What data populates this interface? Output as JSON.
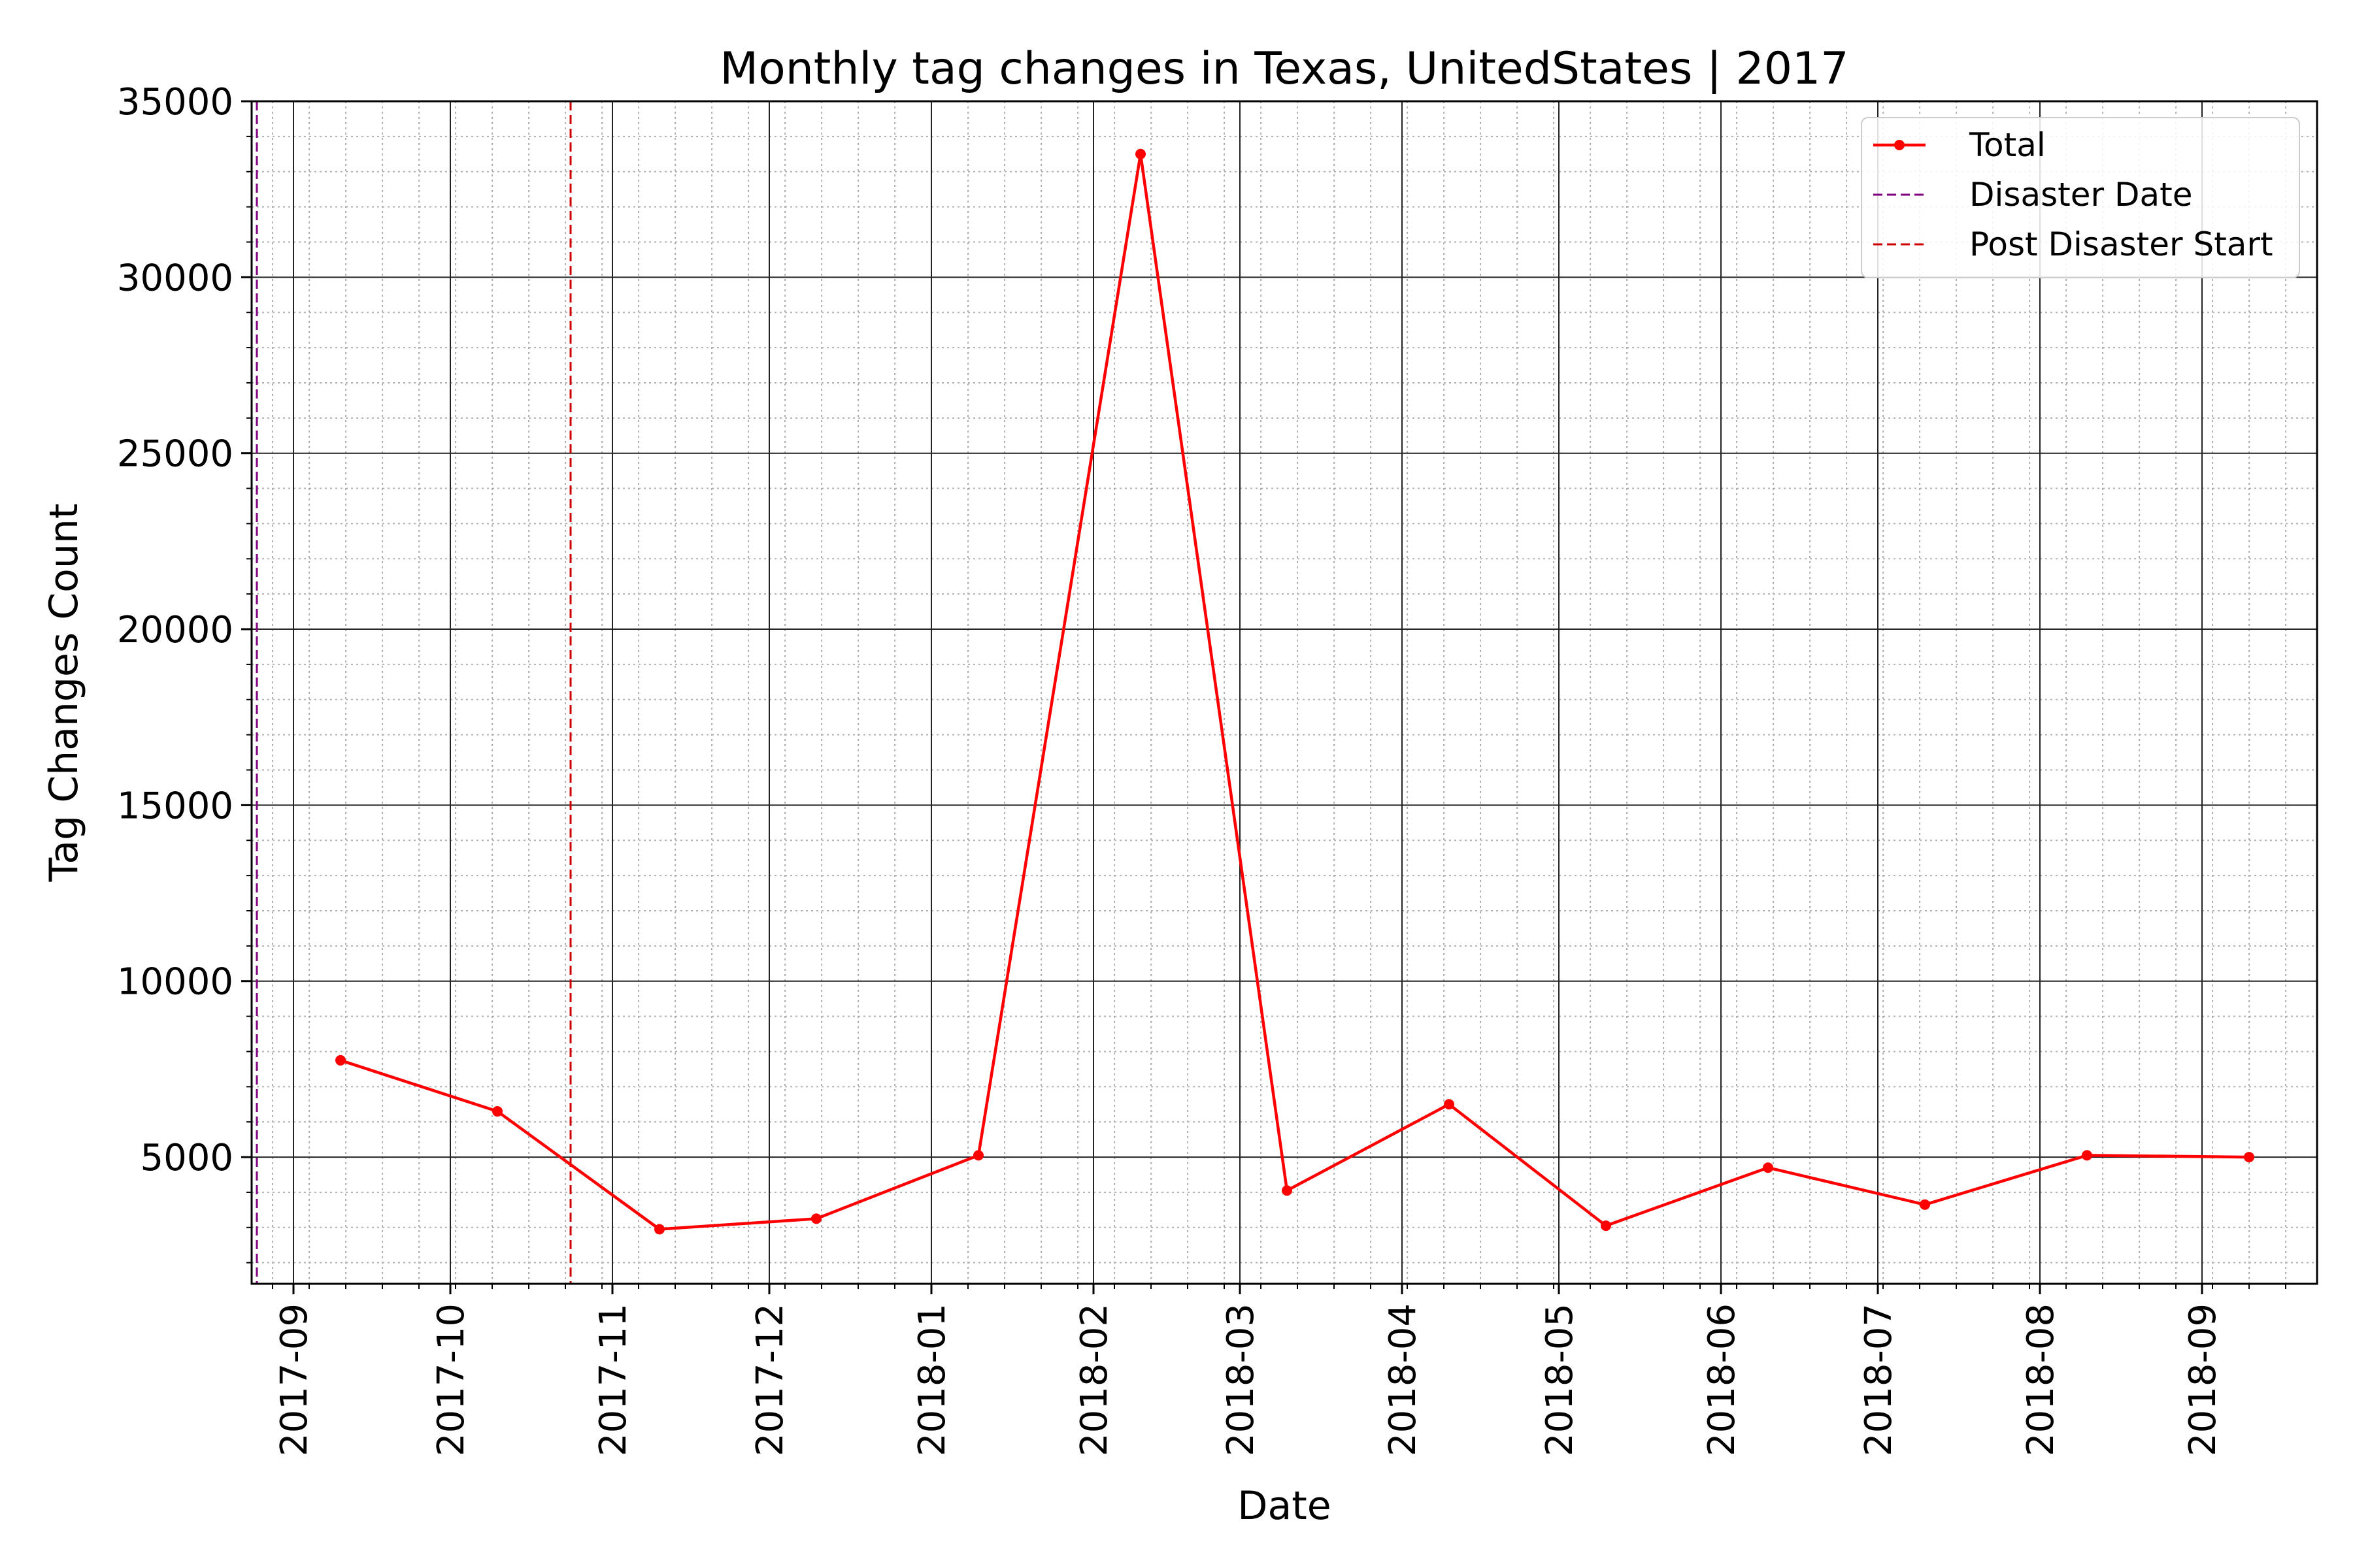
{
  "chart_data": {
    "type": "line",
    "title": "Monthly tag changes in Texas, UnitedStates | 2017",
    "xlabel": "Date",
    "ylabel": "Tag Changes Count",
    "x_range": [
      "2017-08-24",
      "2018-09-23"
    ],
    "ylim": [
      1400,
      35000
    ],
    "y_ticks": [
      5000,
      10000,
      15000,
      20000,
      25000,
      30000,
      35000
    ],
    "x_ticks": [
      "2017-09",
      "2017-10",
      "2017-11",
      "2017-12",
      "2018-01",
      "2018-02",
      "2018-03",
      "2018-04",
      "2018-05",
      "2018-06",
      "2018-07",
      "2018-08",
      "2018-09"
    ],
    "grid": "major solid and minor dotted",
    "legend_position": "top-right",
    "series": [
      {
        "name": "Total",
        "color": "#ff0000",
        "marker": "dot",
        "x": [
          "2017-09-10",
          "2017-10-10",
          "2017-11-10",
          "2017-12-10",
          "2018-01-10",
          "2018-02-10",
          "2018-03-10",
          "2018-04-10",
          "2018-05-10",
          "2018-06-10",
          "2018-07-10",
          "2018-08-10",
          "2018-09-10"
        ],
        "values": [
          7750,
          6300,
          2950,
          3250,
          5050,
          33500,
          4050,
          6500,
          3050,
          4700,
          3650,
          5050,
          5000
        ]
      }
    ],
    "vlines": [
      {
        "name": "Disaster Date",
        "date": "2017-08-25",
        "color": "#800080",
        "style": "dashed"
      },
      {
        "name": "Post Disaster Start",
        "date": "2017-10-24",
        "color": "#cc0000",
        "style": "dashed"
      }
    ]
  }
}
